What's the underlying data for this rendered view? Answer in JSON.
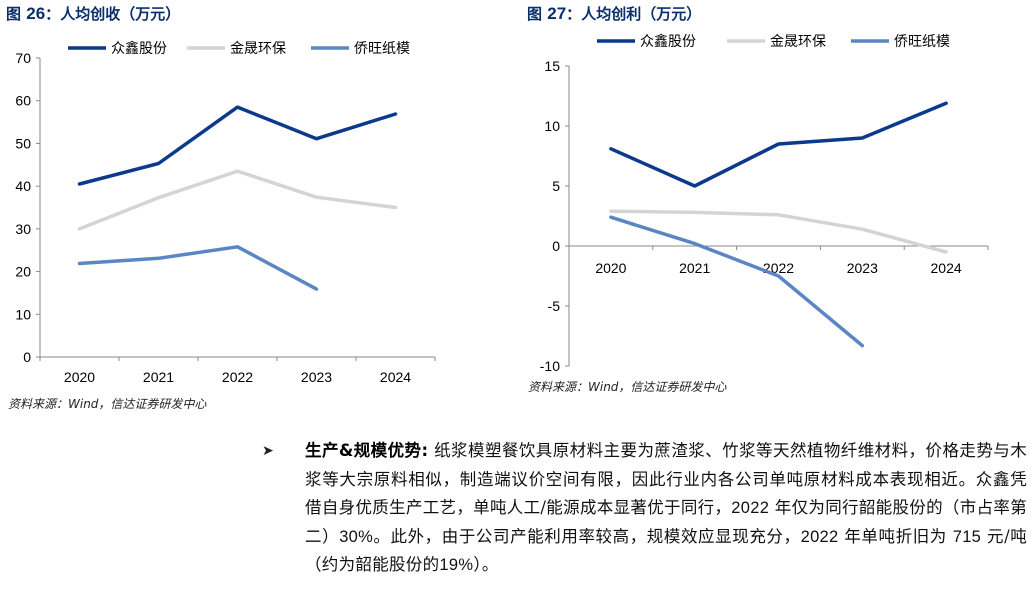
{
  "chart_data": [
    {
      "type": "line",
      "figure_label": "图",
      "figure_number": "26",
      "title": "人均创收（万元）",
      "categories": [
        "2020",
        "2021",
        "2022",
        "2023",
        "2024"
      ],
      "ylim": [
        0,
        70
      ],
      "yticks": [
        0,
        10,
        20,
        30,
        40,
        50,
        60,
        70
      ],
      "series": [
        {
          "name": "众鑫股份",
          "color": "#0b3a8c",
          "values": [
            40.5,
            45.3,
            58.5,
            51.1,
            56.9
          ]
        },
        {
          "name": "金晟环保",
          "color": "#d4d4d4",
          "values": [
            30.0,
            37.3,
            43.5,
            37.4,
            35.0
          ]
        },
        {
          "name": "侨旺纸模",
          "color": "#5b86c4",
          "values": [
            21.9,
            23.1,
            25.8,
            15.9,
            null
          ]
        }
      ],
      "source": "资料来源：Wind，信达证券研发中心"
    },
    {
      "type": "line",
      "figure_label": "图",
      "figure_number": "27",
      "title": "人均创利（万元）",
      "categories": [
        "2020",
        "2021",
        "2022",
        "2023",
        "2024"
      ],
      "ylim": [
        -10,
        15
      ],
      "yticks": [
        -10,
        -5,
        0,
        5,
        10,
        15
      ],
      "series": [
        {
          "name": "众鑫股份",
          "color": "#0b3a8c",
          "values": [
            8.1,
            5.0,
            8.5,
            9.0,
            11.9
          ]
        },
        {
          "name": "金晟环保",
          "color": "#d4d4d4",
          "values": [
            2.9,
            2.8,
            2.6,
            1.4,
            -0.5
          ]
        },
        {
          "name": "侨旺纸模",
          "color": "#5b86c4",
          "values": [
            2.4,
            0.2,
            -2.5,
            -8.3,
            null
          ]
        }
      ],
      "source": "资料来源：Wind，信达证券研发中心"
    }
  ],
  "bullet": {
    "heading": "生产&规模优势:",
    "p1": "纸浆模塑餐饮具原材料主要为蔗渣浆、竹浆等天然植物纤维材料，价格走势与木浆等大宗原料相似，制造端议价空间有限，因此行业内各公司单吨原材料成本表现相近。众鑫凭借自身优质生产工艺，单吨人工/能源成本显著优于同行，",
    "n1": "2022",
    "p2": "年仅为同行韶能股份的（市占率第二）",
    "n2": "30%",
    "p3": "。此外，由于公司产能利用率较高，规模效应显现充分，",
    "n3": "2022",
    "p4": "年单吨折旧为",
    "n4": "715",
    "p5": "元/吨（约为韶能股份的",
    "n5": "19%",
    "p6": "）。"
  }
}
